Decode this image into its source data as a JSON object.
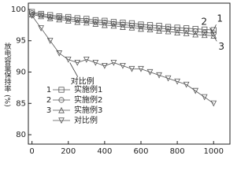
{
  "chart_data": {
    "type": "line",
    "y_label": "放电容量保持率 (%)",
    "x": [
      0,
      50,
      100,
      150,
      200,
      250,
      300,
      350,
      400,
      450,
      500,
      550,
      600,
      650,
      700,
      750,
      800,
      850,
      900,
      950,
      1000
    ],
    "series": [
      {
        "name": "实施例1",
        "tag": "1",
        "marker": "square",
        "color": "#555555",
        "values": [
          99.6,
          99.3,
          99.1,
          98.9,
          98.8,
          98.6,
          98.5,
          98.3,
          98.2,
          98.0,
          97.9,
          97.8,
          97.6,
          97.5,
          97.4,
          97.2,
          97.1,
          97.0,
          96.9,
          96.8,
          96.7
        ]
      },
      {
        "name": "实施例2",
        "tag": "2",
        "marker": "circle",
        "color": "#555555",
        "values": [
          99.4,
          99.1,
          98.8,
          98.7,
          98.5,
          98.3,
          98.2,
          98.0,
          97.9,
          97.7,
          97.6,
          97.4,
          97.3,
          97.1,
          97.0,
          96.9,
          96.7,
          96.6,
          96.5,
          96.3,
          96.2
        ]
      },
      {
        "name": "实施例3",
        "tag": "3",
        "marker": "triangle-up",
        "color": "#555555",
        "values": [
          99.2,
          98.9,
          98.6,
          98.4,
          98.2,
          98.0,
          97.9,
          97.7,
          97.5,
          97.4,
          97.2,
          97.1,
          96.9,
          96.8,
          96.6,
          96.5,
          96.3,
          96.2,
          96.0,
          95.9,
          95.8
        ]
      },
      {
        "name": "对比例",
        "marker": "triangle-down",
        "color": "#555555",
        "values": [
          99.0,
          97.0,
          95.0,
          93.0,
          92.0,
          91.5,
          92.0,
          91.5,
          91.0,
          91.5,
          91.0,
          90.5,
          90.5,
          90.0,
          89.5,
          89.0,
          88.5,
          88.0,
          87.0,
          86.0,
          85.0
        ]
      }
    ],
    "xlim": [
      -20,
      1090
    ],
    "ylim": [
      78.5,
      101
    ],
    "xticks": [
      0,
      200,
      400,
      600,
      800,
      1000
    ],
    "yticks": [
      80,
      85,
      90,
      95,
      100
    ]
  }
}
